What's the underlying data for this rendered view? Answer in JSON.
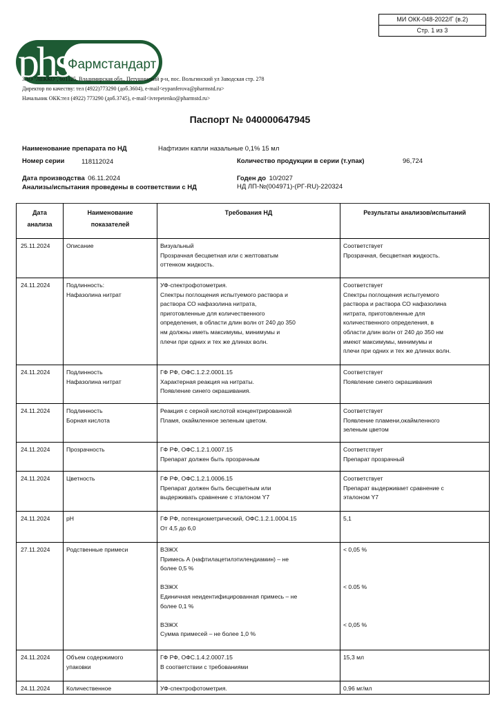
{
  "doc_ref": {
    "code": "МИ ОКК-048-2022/Г (в.2)",
    "page": "Стр. 1 из 3"
  },
  "logo": {
    "mark": "phs",
    "name": "Фармстандарт",
    "colors": {
      "green": "#1d5a33",
      "white": "#ffffff"
    }
  },
  "company": {
    "address": "ЗАО \"ЛЕККО\", 601125, Владимирская обл., Петушинский р-н, пос. Вольгинский ул Заводская стр. 278",
    "director": "Директор по качеству: тел (4922)773290 (доб.3604), e-mail<eypanferova@pharmstd.ru>",
    "head_okk": "Начальник ОКК:тел (4922) 773290 (доб.3745), e-mail<ivrepetenko@pharmstd.ru>"
  },
  "title": "Паспорт № 040000647945",
  "info": {
    "product_label": "Наименование препарата по НД",
    "product_value": "Нафтизин капли назальные 0,1% 15 мл",
    "series_label": "Номер серии",
    "series_value": "118112024",
    "quantity_label": "Количество продукции в серии (т.упак)",
    "quantity_value": "96,724",
    "prod_date_label": "Дата производства",
    "prod_date_value": "06.11.2024",
    "expiry_label": "Годен до",
    "expiry_value": "10/2027",
    "nd_label": "Анализы/испытания проведены в соответствии с НД",
    "nd_value": "НД ЛП-№(004971)-(РГ-RU)-220324"
  },
  "table": {
    "headers": [
      [
        "Дата",
        "анализа"
      ],
      [
        "Наименование",
        "показателей"
      ],
      [
        "Требования НД"
      ],
      [
        "Результаты анализов/испытаний"
      ]
    ],
    "rows": [
      {
        "date": "25.11.2024",
        "name": [
          "Описание"
        ],
        "req": [
          "Визуальный",
          "Прозрачная бесцветная или с желтоватым",
          "оттенком жидкость."
        ],
        "res": [
          "Соответствует",
          "Прозрачная, бесцветная жидкость."
        ]
      },
      {
        "date": "24.11.2024",
        "name": [
          "Подлинность:",
          "Нафазолина нитрат"
        ],
        "req": [
          "УФ-спектрофотометрия.",
          "Спектры поглощения испытуемого раствора и",
          "раствора СО нафазолина нитрата,",
          "приготовленные для количественного",
          "определения, в области длин волн от 240 до 350",
          "нм должны иметь максимумы, минимумы и",
          "плечи при одних и тех же длинах волн."
        ],
        "res": [
          "Соответствует",
          "Спектры поглощения испытуемого",
          "раствора и раствора СО нафазолина",
          "нитрата, приготовленные для",
          "количественного определения, в",
          "области длин волн от 240 до 350 нм",
          "имеют максимумы, минимумы и",
          "плечи при одних и тех же длинах волн."
        ]
      },
      {
        "date": "24.11.2024",
        "name": [
          "Подлинность",
          "Нафазолина нитрат"
        ],
        "req": [
          "ГФ РФ, ОФС.1.2.2.0001.15",
          "Характерная реакция на нитраты.",
          "Появление синего окрашивания."
        ],
        "res": [
          "Соответствует",
          "Появление синего окрашивания"
        ]
      },
      {
        "date": "24.11.2024",
        "name": [
          "Подлинность",
          "Борная кислота"
        ],
        "req": [
          "Реакция с серной кислотой концентрированной",
          "Пламя, окаймленное зеленым цветом."
        ],
        "res": [
          "Соответствует",
          "Появление пламени,окаймленного",
          "зеленым цветом"
        ]
      },
      {
        "date": "24.11.2024",
        "name": [
          "Прозрачность"
        ],
        "req": [
          "ГФ РФ, ОФС.1.2.1.0007.15",
          "Препарат должен быть прозрачным"
        ],
        "res": [
          "Соответствует",
          "Препарат прозрачный"
        ]
      },
      {
        "date": "24.11.2024",
        "name": [
          "Цветность"
        ],
        "req": [
          "ГФ РФ, ОФС.1.2.1.0006.15",
          "Препарат должен быть бесцветным или",
          "выдерживать сравнение с эталоном Y7"
        ],
        "res": [
          "Соответствует",
          "Препарат выдерживает сравнение с",
          "эталоном Y7"
        ]
      },
      {
        "date": "24.11.2024",
        "name": [
          "pH"
        ],
        "req": [
          "ГФ РФ, потенциометрический, ОФС.1.2.1.0004.15",
          "От 4,5 до 6,0"
        ],
        "res": [
          "5,1"
        ]
      },
      {
        "date": "27.11.2024",
        "name": [
          "Родственные примеси"
        ],
        "req": [
          "ВЭЖХ",
          "Примесь А (нафтилацетилэтилендиамин) – не",
          "более 0,5 %",
          "",
          "ВЭЖХ",
          "Единичная неидентифицированная примесь – не",
          "более 0,1 %",
          "",
          "ВЭЖХ",
          "Сумма примесей – не более 1,0 %"
        ],
        "res": [
          "< 0,05 %",
          "",
          "",
          "",
          "< 0.05 %",
          "",
          "",
          "",
          "< 0,05 %"
        ]
      },
      {
        "date": "24.11.2024",
        "name": [
          "Объем содержимого",
          "упаковки"
        ],
        "req": [
          "ГФ РФ, ОФС.1.4.2.0007.15",
          "В соответствии с требованиями"
        ],
        "res": [
          "15,3 мл"
        ]
      },
      {
        "date": "24.11.2024",
        "name": [
          "Количественное"
        ],
        "req": [
          "УФ-спектрофотометрия."
        ],
        "res": [
          "0,96 мг/мл"
        ]
      }
    ]
  }
}
